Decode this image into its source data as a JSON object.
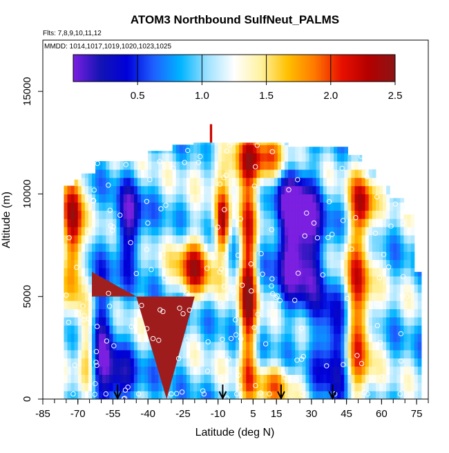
{
  "chart_data": {
    "type": "heatmap",
    "title": "ATOM3 Northbound SulfNeut_PALMS",
    "subtitle_flights": "Flts: 7,8,9,10,11,12",
    "subtitle_dates": "MMDD: 1014,1017,1019,1020,1023,1025",
    "xlabel": "Latitude (deg N)",
    "ylabel": "Altitude (m)",
    "xlim": [
      -85,
      80
    ],
    "ylim": [
      0,
      17500
    ],
    "x_ticks": [
      -85,
      -70,
      -55,
      -40,
      -25,
      -10,
      5,
      15,
      30,
      45,
      60,
      75
    ],
    "x_tick_labels": [
      "-85",
      "-70",
      "-55",
      "-40",
      "-25",
      "-10",
      "5",
      "15",
      "30",
      "45",
      "60",
      "75"
    ],
    "y_ticks": [
      0,
      5000,
      10000,
      15000
    ],
    "y_tick_labels": [
      "0",
      "5000",
      "10000",
      "15000"
    ],
    "colorbar": {
      "range": [
        0,
        2.5
      ],
      "ticks": [
        0.5,
        1.0,
        1.5,
        2.0,
        2.5
      ],
      "tick_labels": [
        "0.5",
        "1.0",
        "1.5",
        "2.0",
        "2.5"
      ],
      "colors": [
        "#7b1fe0",
        "#1414b4",
        "#0000d8",
        "#1e60ff",
        "#00b4ff",
        "#9ee2ff",
        "#ffffff",
        "#fff2a0",
        "#ffc000",
        "#ff7800",
        "#e81000",
        "#b40000",
        "#8c1414"
      ]
    },
    "arrows_latitude": [
      -53,
      -8,
      17,
      39
    ],
    "grid": false,
    "legend": "colorbar-top"
  }
}
